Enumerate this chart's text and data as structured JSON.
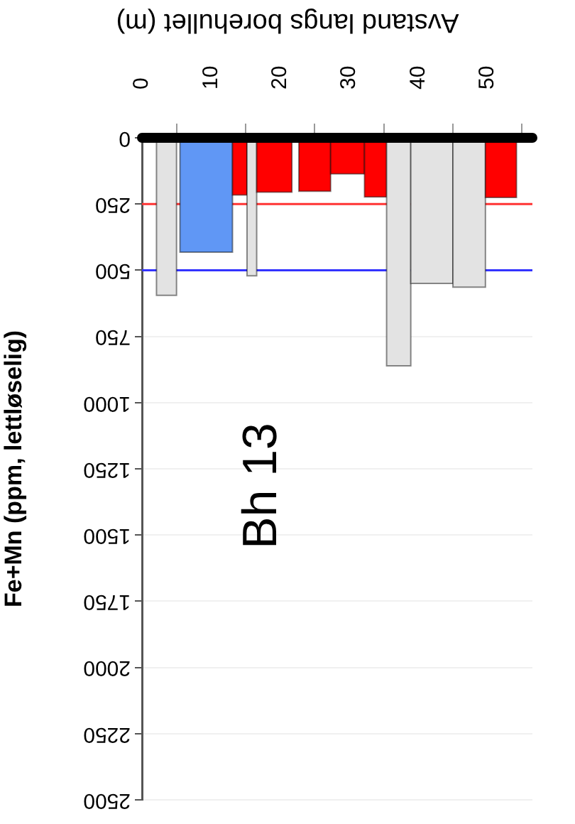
{
  "chart_data": {
    "type": "histogram",
    "xlabel": "Avstand langs borehullet (m)",
    "ylabel": "Fe+Mn (ppm, lettløselig)",
    "annotations": [
      "Bh 13"
    ],
    "bins": [
      2.1,
      5.0,
      5.5,
      13.1,
      15.2,
      16.6,
      21.7,
      22.7,
      27.3,
      32.2,
      35.4,
      38.9,
      45.0,
      49.7,
      54.2
    ],
    "values": [
      595,
      null,
      432,
      216,
      521,
      205,
      null,
      202,
      136,
      223,
      861,
      550,
      564,
      225
    ],
    "colors": [
      "#e3e3e3",
      null,
      "#6097f5",
      "#ff0000",
      "#e3e3e3",
      "#ff0000",
      null,
      "#ff0000",
      "#ff0000",
      "#ff0000",
      "#e3e3e3",
      "#e3e3e3",
      "#e3e3e3",
      "#ff0000"
    ],
    "xlim": [
      0,
      56.5
    ],
    "xticks": [
      0,
      10,
      20,
      30,
      40,
      50
    ],
    "ylim": [
      2500,
      0
    ],
    "yticks": [
      0,
      250,
      500,
      750,
      1000,
      1250,
      1500,
      1750,
      2000,
      2250,
      2500
    ],
    "ref_lines": [
      {
        "axis": "y",
        "value": 250,
        "color": "#ff3333"
      },
      {
        "axis": "y",
        "value": 500,
        "color": "#3333ff"
      }
    ],
    "grid": "y"
  }
}
